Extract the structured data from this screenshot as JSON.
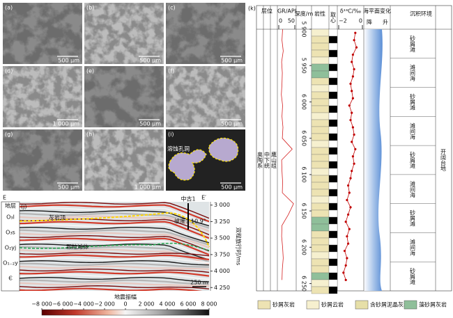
{
  "figure": {
    "micrographs": [
      {
        "label": "(a)",
        "scale": "500 μm"
      },
      {
        "label": "(b)",
        "scale": "500 μm"
      },
      {
        "label": "(c)",
        "scale": "500 μm"
      },
      {
        "label": "(d)",
        "scale": "1 000 μm"
      },
      {
        "label": "(e)",
        "scale": "500 μm"
      },
      {
        "label": "(f)",
        "scale": "500 μm"
      },
      {
        "label": "(g)",
        "scale": "500 μm"
      },
      {
        "label": "(h)",
        "scale": "1 000 μm"
      },
      {
        "label": "(i)",
        "scale": "500 μm"
      }
    ],
    "pore_annotation": "溶蚀孔洞",
    "seismic": {
      "label": "(j)",
      "left_end": "E",
      "right_end": "E′",
      "well": "中古1",
      "strata_header": "地层",
      "strata": [
        "O₃l",
        "O₃s",
        "O₂yj",
        "O₁₋₂y",
        "Є"
      ],
      "top_horizon": "灰岩顶",
      "slope": "坡度：10.9°",
      "shoal": "颗粒滩体",
      "axis_label": "双程旅行时/ms",
      "ylim": [
        2950,
        4300
      ],
      "yticks": [
        {
          "value": 3000,
          "label": "3 000"
        },
        {
          "value": 3250,
          "label": "3 250"
        },
        {
          "value": 3500,
          "label": "3 500"
        },
        {
          "value": 3750,
          "label": "3 750"
        },
        {
          "value": 4000,
          "label": "4 000"
        },
        {
          "value": 4250,
          "label": "4 250"
        }
      ],
      "scale_bar": "250 m"
    },
    "colorbar": {
      "title": "地震振幅",
      "lim": [
        -8000,
        8000
      ],
      "ticks": [
        {
          "value": -8000,
          "label": "−8 000"
        },
        {
          "value": -6000,
          "label": "−6 000"
        },
        {
          "value": -4000,
          "label": "−4 000"
        },
        {
          "value": -2000,
          "label": "−2 000"
        },
        0,
        {
          "value": 2000,
          "label": "2 000"
        },
        {
          "value": 4000,
          "label": "4 000"
        },
        {
          "value": 6000,
          "label": "6 000"
        },
        {
          "value": 8000,
          "label": "8 000"
        }
      ]
    },
    "well_log": {
      "label": "(k)",
      "strat_header": "层位",
      "strat": [
        "奥陶系",
        "中下统",
        "鹰山组"
      ],
      "gr": {
        "title": "GR/API",
        "xlim": [
          0,
          50
        ],
        "xticks": [
          0,
          50
        ],
        "depths": [
          5900,
          5915,
          5930,
          5945,
          5960,
          5975,
          5990,
          6005,
          6020,
          6035,
          6050,
          6065,
          6080,
          6095,
          6110,
          6125,
          6140,
          6155,
          6170,
          6185,
          6200,
          6215,
          6230,
          6245
        ],
        "values": [
          12,
          10,
          14,
          9,
          11,
          10,
          8,
          12,
          10,
          13,
          11,
          42,
          9,
          10,
          12,
          11,
          46,
          30,
          10,
          9,
          12,
          14,
          11,
          10
        ]
      },
      "depth_title": "深度/m",
      "dlim": [
        5900,
        6260
      ],
      "depth_ticks": [
        {
          "value": 5900,
          "label": "5 900"
        },
        {
          "value": 5950,
          "label": "5 950"
        },
        {
          "value": 6000,
          "label": "6 000"
        },
        {
          "value": 6050,
          "label": "6 050"
        },
        {
          "value": 6100,
          "label": "6 100"
        },
        {
          "value": 6150,
          "label": "6 150"
        },
        {
          "value": 6200,
          "label": "6 200"
        },
        {
          "value": 6250,
          "label": "6 250"
        }
      ],
      "lithology_title": "岩性",
      "core_title": "取心",
      "d13c": {
        "title": "δ¹³C/‰",
        "xlim": [
          -2,
          0
        ],
        "xticks": [
          {
            "value": -2,
            "label": "−2"
          },
          0
        ],
        "depths": [
          5905,
          5915,
          5925,
          5935,
          5945,
          5955,
          5965,
          5975,
          5985,
          5995,
          6005,
          6015,
          6025,
          6035,
          6045,
          6055,
          6065,
          6075,
          6085,
          6095,
          6105,
          6115,
          6125,
          6135,
          6145,
          6155,
          6165,
          6175,
          6185,
          6195,
          6205,
          6215,
          6225,
          6235,
          6245
        ],
        "values": [
          -0.6,
          -0.7,
          -0.5,
          -0.8,
          -0.9,
          -0.7,
          -0.8,
          -1.0,
          -0.9,
          -0.8,
          -1.1,
          -0.9,
          -1.0,
          -0.8,
          -0.7,
          -0.9,
          -0.6,
          -0.8,
          -0.7,
          -0.9,
          -1.0,
          -1.2,
          -1.1,
          -1.3,
          -1.0,
          -1.2,
          -1.4,
          -1.1,
          -1.3,
          -1.2,
          -1.5,
          -1.3,
          -1.4,
          -1.6,
          -1.4
        ]
      },
      "sea_level_title": "海平面变化",
      "sea_level_ends": [
        "降",
        "升"
      ],
      "facies_title": "沉积环境",
      "subfacies": [
        "砂屑滩",
        "滩间海",
        "砂屑滩",
        "滩间海",
        "砂屑滩",
        "滩间海",
        "砂屑滩",
        "滩间海",
        "砂屑滩"
      ],
      "facies": "开阔台地",
      "legend": [
        "砂屑灰岩",
        "砂屑云岩",
        "含砂屑泥晶灰岩",
        "藻砂屑灰岩"
      ]
    }
  }
}
